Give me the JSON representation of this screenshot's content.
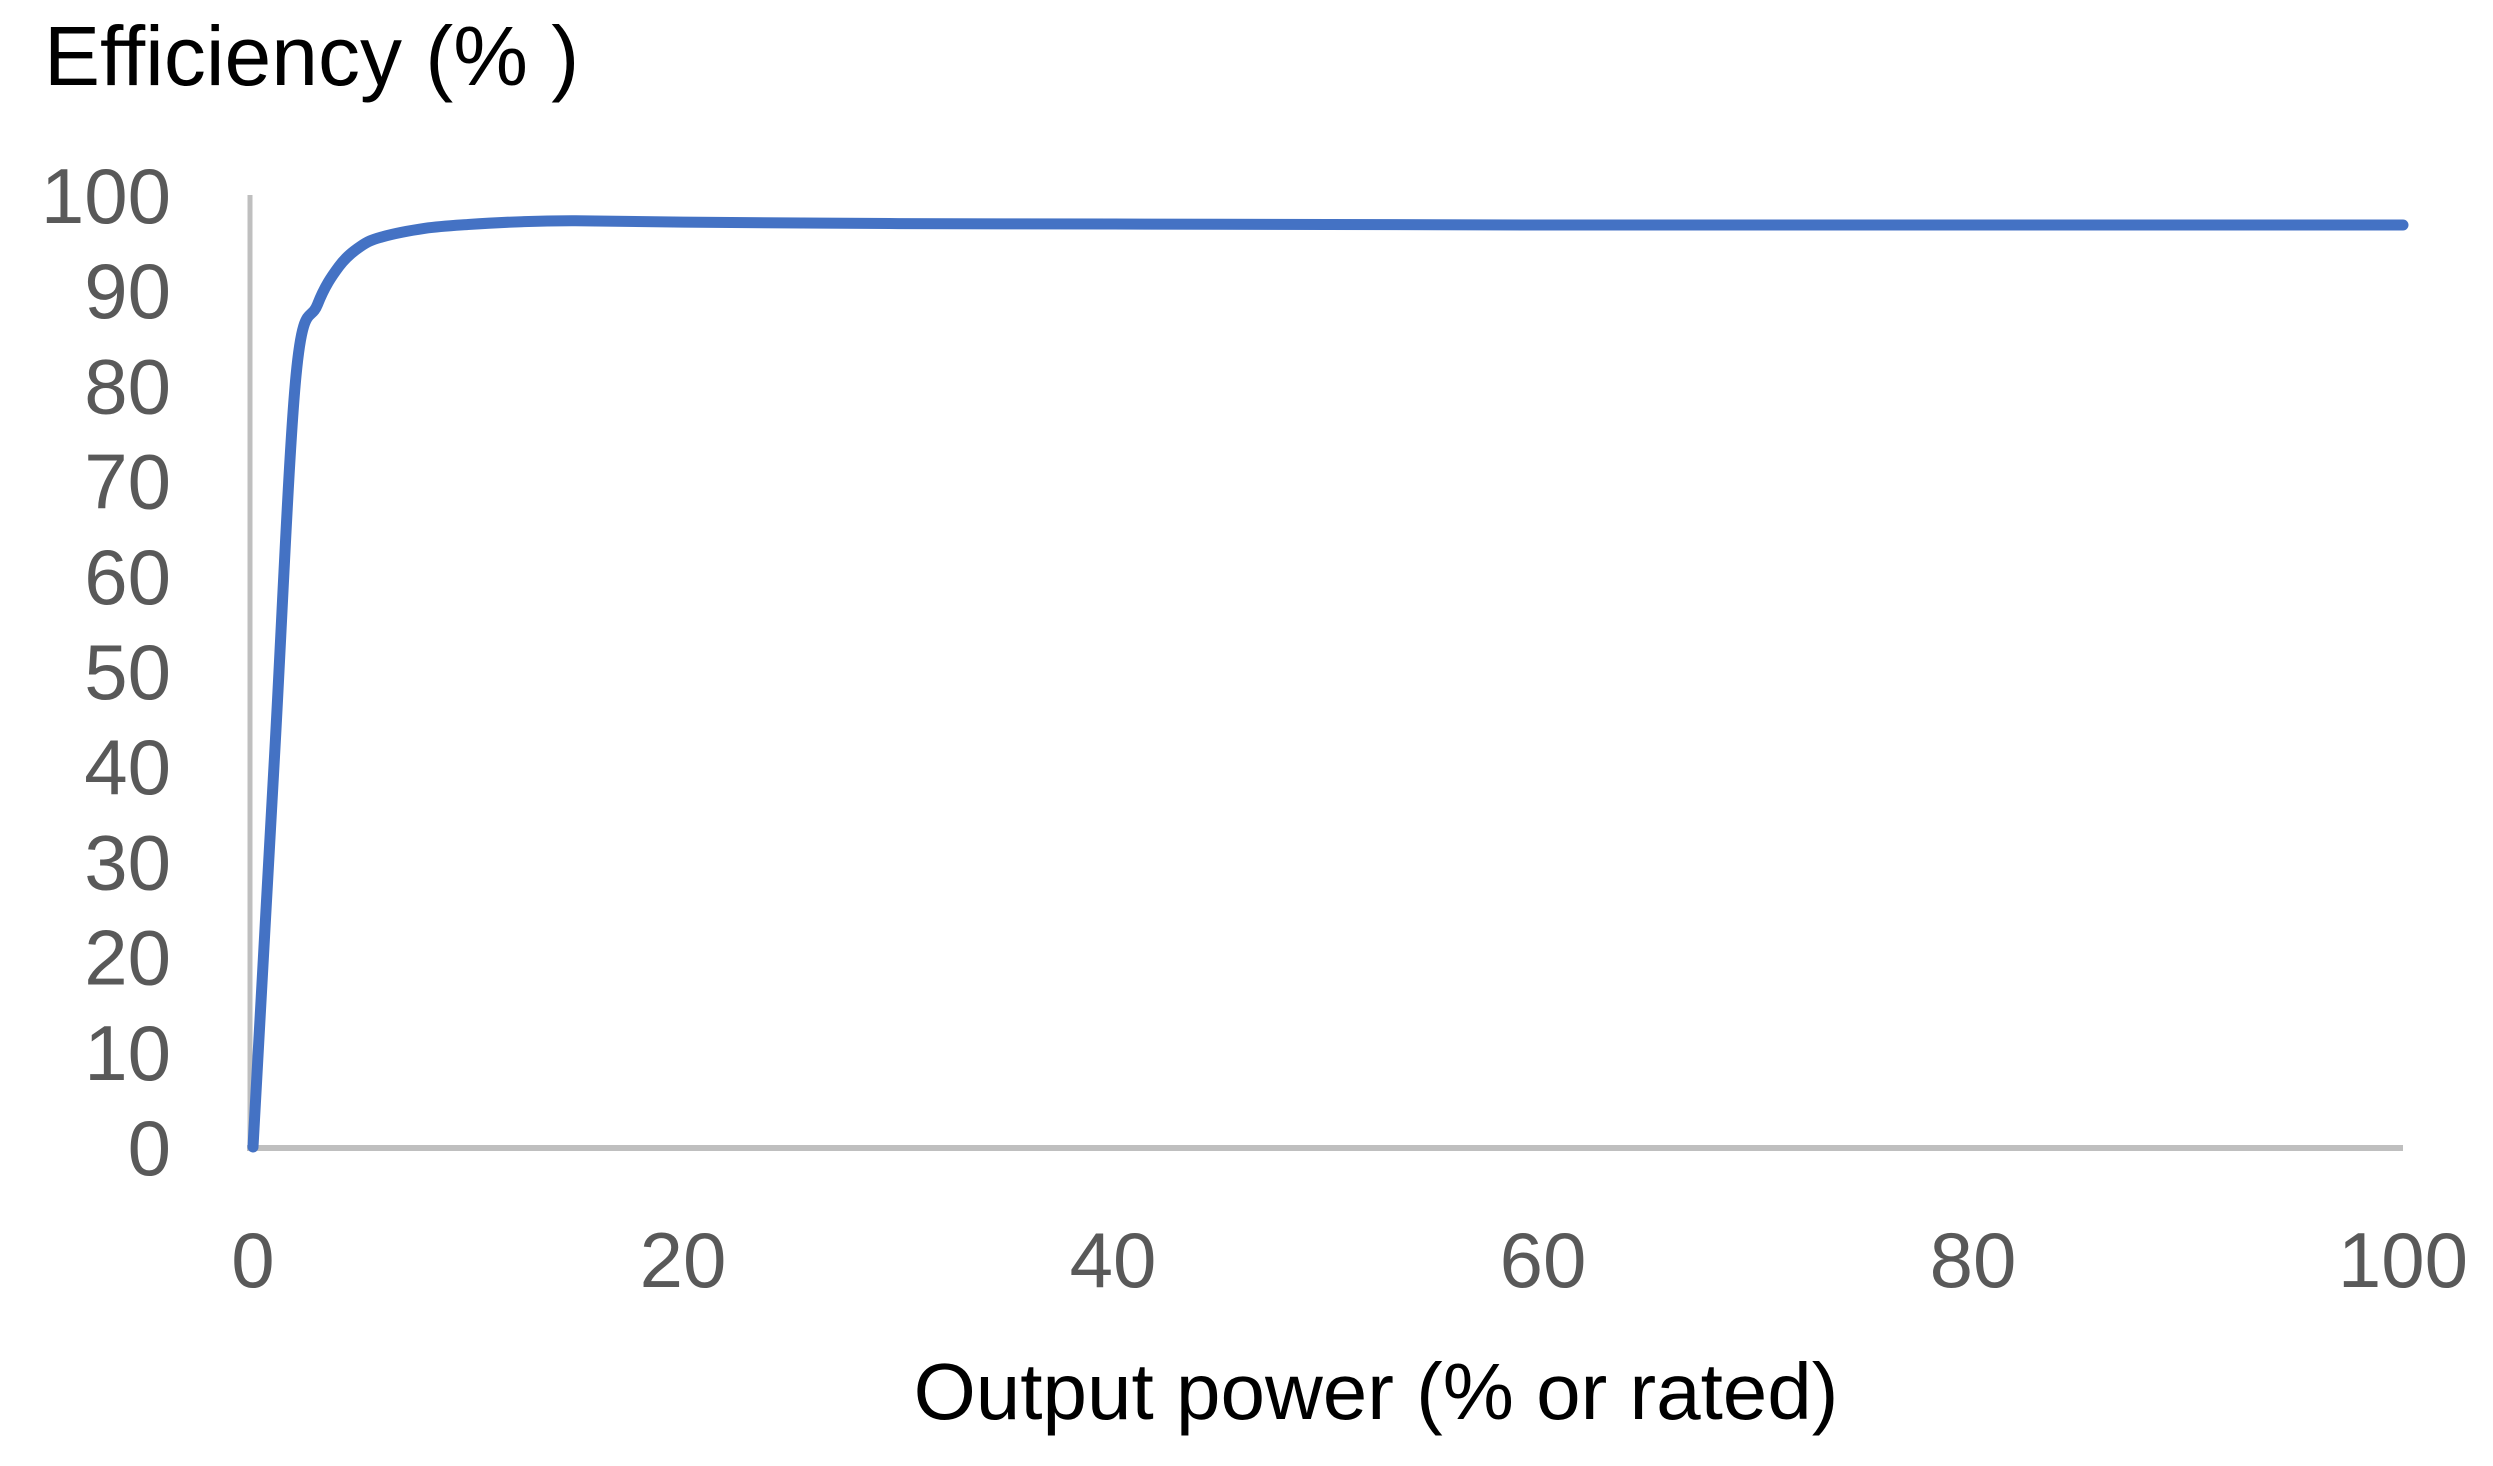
{
  "chart_data": {
    "type": "line",
    "title": "Efficiency (% )",
    "xlabel": "Output power (% or rated)",
    "ylabel": "",
    "xlim": [
      0,
      100
    ],
    "ylim": [
      0,
      100
    ],
    "x_ticks": [
      0,
      20,
      40,
      60,
      80,
      100
    ],
    "y_ticks": [
      0,
      10,
      20,
      30,
      40,
      50,
      60,
      70,
      80,
      90,
      100
    ],
    "grid": false,
    "legend": "none",
    "series": [
      {
        "name": "Efficiency",
        "points": [
          [
            0,
            0
          ],
          [
            1,
            41
          ],
          [
            2,
            81
          ],
          [
            3,
            88.5
          ],
          [
            4,
            92.5
          ],
          [
            5,
            94.6
          ],
          [
            6,
            95.6
          ],
          [
            8,
            96.5
          ],
          [
            10,
            96.9
          ],
          [
            12.5,
            97.2
          ],
          [
            15,
            97.3
          ],
          [
            20,
            97.15
          ],
          [
            30,
            97.0
          ],
          [
            40,
            96.95
          ],
          [
            50,
            96.9
          ],
          [
            60,
            96.85
          ],
          [
            70,
            96.85
          ],
          [
            80,
            96.85
          ],
          [
            90,
            96.85
          ],
          [
            100,
            96.85
          ]
        ],
        "color": "#4472C4"
      }
    ],
    "colors": {
      "line": "#4472C4",
      "axis_line": "#BFBFBF",
      "tick_label": "#595959",
      "title_text": "#000000"
    }
  }
}
